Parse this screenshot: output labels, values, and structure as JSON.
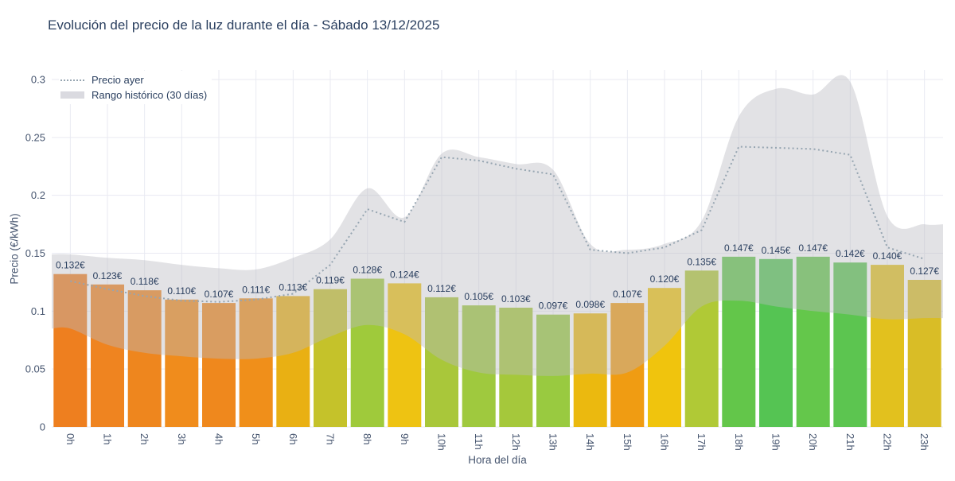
{
  "title": "Evolución del precio de la luz durante el día - Sábado 13/12/2025",
  "legend": {
    "yesterday": "Precio ayer",
    "range": "Rango histórico (30 días)"
  },
  "colors": {
    "title_text": "#2a3f5f",
    "label_text": "#2a3f5f",
    "tick_text": "#46556f",
    "grid": "#e9eaf2",
    "band": "rgba(186,186,192,0.42)",
    "yesterday_line": "#96a5b1",
    "legend_band_swatch": "#dadae0"
  },
  "chart_data": {
    "type": "bar",
    "title": "Evolución del precio de la luz durante el día - Sábado 13/12/2025",
    "xlabel": "Hora del día",
    "ylabel": "Precio (€/kWh)",
    "ylim": [
      0,
      0.3
    ],
    "grid": true,
    "legend_position": "top-left",
    "yticks": {
      "values": [
        0,
        0.05,
        0.1,
        0.15,
        0.2,
        0.25,
        0.3
      ],
      "labels": [
        "0",
        "0.05",
        "0.1",
        "0.15",
        "0.2",
        "0.25",
        "0.3"
      ]
    },
    "categories": [
      "0h",
      "1h",
      "2h",
      "3h",
      "4h",
      "5h",
      "6h",
      "7h",
      "8h",
      "9h",
      "10h",
      "11h",
      "12h",
      "13h",
      "14h",
      "15h",
      "16h",
      "17h",
      "18h",
      "19h",
      "20h",
      "21h",
      "22h",
      "23h"
    ],
    "values": [
      0.132,
      0.123,
      0.118,
      0.11,
      0.107,
      0.111,
      0.113,
      0.119,
      0.128,
      0.124,
      0.112,
      0.105,
      0.103,
      0.097,
      0.098,
      0.107,
      0.12,
      0.135,
      0.147,
      0.145,
      0.147,
      0.142,
      0.14,
      0.127
    ],
    "bar_labels": [
      "0.132€",
      "0.123€",
      "0.118€",
      "0.110€",
      "0.107€",
      "0.111€",
      "0.113€",
      "0.119€",
      "0.128€",
      "0.124€",
      "0.112€",
      "0.105€",
      "0.103€",
      "0.097€",
      "0.098€",
      "0.107€",
      "0.120€",
      "0.135€",
      "0.147€",
      "0.145€",
      "0.147€",
      "0.142€",
      "0.140€",
      "0.127€"
    ],
    "bar_colors": [
      "#ee7f1f",
      "#ef8420",
      "#ee861e",
      "#f08c1c",
      "#ef881d",
      "#f08f1a",
      "#e9b013",
      "#c5c22a",
      "#9fca3b",
      "#eec312",
      "#a9c73a",
      "#9fc93e",
      "#a5c83b",
      "#99ca40",
      "#ebb90f",
      "#f09c12",
      "#f0c40d",
      "#b0c936",
      "#63c64a",
      "#55c453",
      "#64c74b",
      "#5cc550",
      "#e2c11e",
      "#d9bd26"
    ],
    "series": [
      {
        "name": "Precio ayer",
        "type": "line",
        "style": "dotted",
        "color": "#96a5b1",
        "values": [
          0.126,
          0.119,
          0.113,
          0.109,
          0.108,
          0.11,
          0.115,
          0.14,
          0.188,
          0.177,
          0.233,
          0.23,
          0.223,
          0.218,
          0.153,
          0.15,
          0.155,
          0.17,
          0.242,
          0.241,
          0.24,
          0.235,
          0.155,
          0.145
        ]
      },
      {
        "name": "Rango histórico (30 días)",
        "type": "band",
        "color": "rgba(186,186,192,0.42)",
        "upper": [
          0.149,
          0.146,
          0.144,
          0.14,
          0.137,
          0.136,
          0.146,
          0.162,
          0.206,
          0.181,
          0.236,
          0.233,
          0.227,
          0.222,
          0.158,
          0.153,
          0.158,
          0.178,
          0.268,
          0.292,
          0.287,
          0.298,
          0.182,
          0.175
        ],
        "lower": [
          0.085,
          0.071,
          0.064,
          0.061,
          0.059,
          0.059,
          0.064,
          0.078,
          0.088,
          0.08,
          0.058,
          0.047,
          0.045,
          0.044,
          0.046,
          0.047,
          0.07,
          0.104,
          0.109,
          0.104,
          0.1,
          0.097,
          0.093,
          0.094
        ]
      }
    ]
  }
}
